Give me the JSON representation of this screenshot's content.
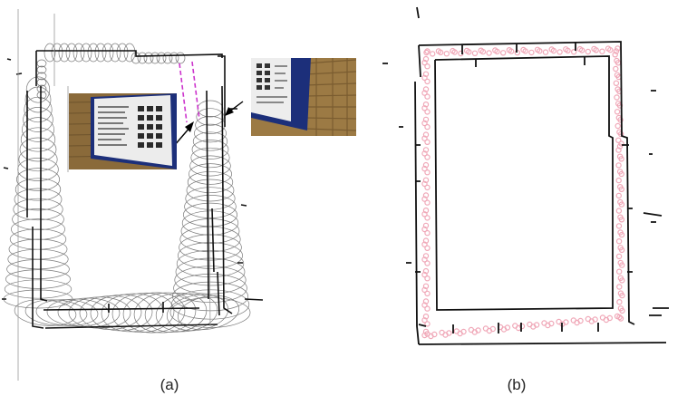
{
  "figure": {
    "panel_a": {
      "caption": "(a)"
    },
    "panel_b": {
      "caption": "(b)"
    }
  },
  "colors": {
    "map_ink": "#111111",
    "ellipse_stroke": "#7a7a7a",
    "trajectory_magenta": "#cc33cc",
    "trajectory_pink": "#f0a8b8",
    "poster_blue": "#1c2f7a",
    "brick": "#8a6a3a"
  }
}
